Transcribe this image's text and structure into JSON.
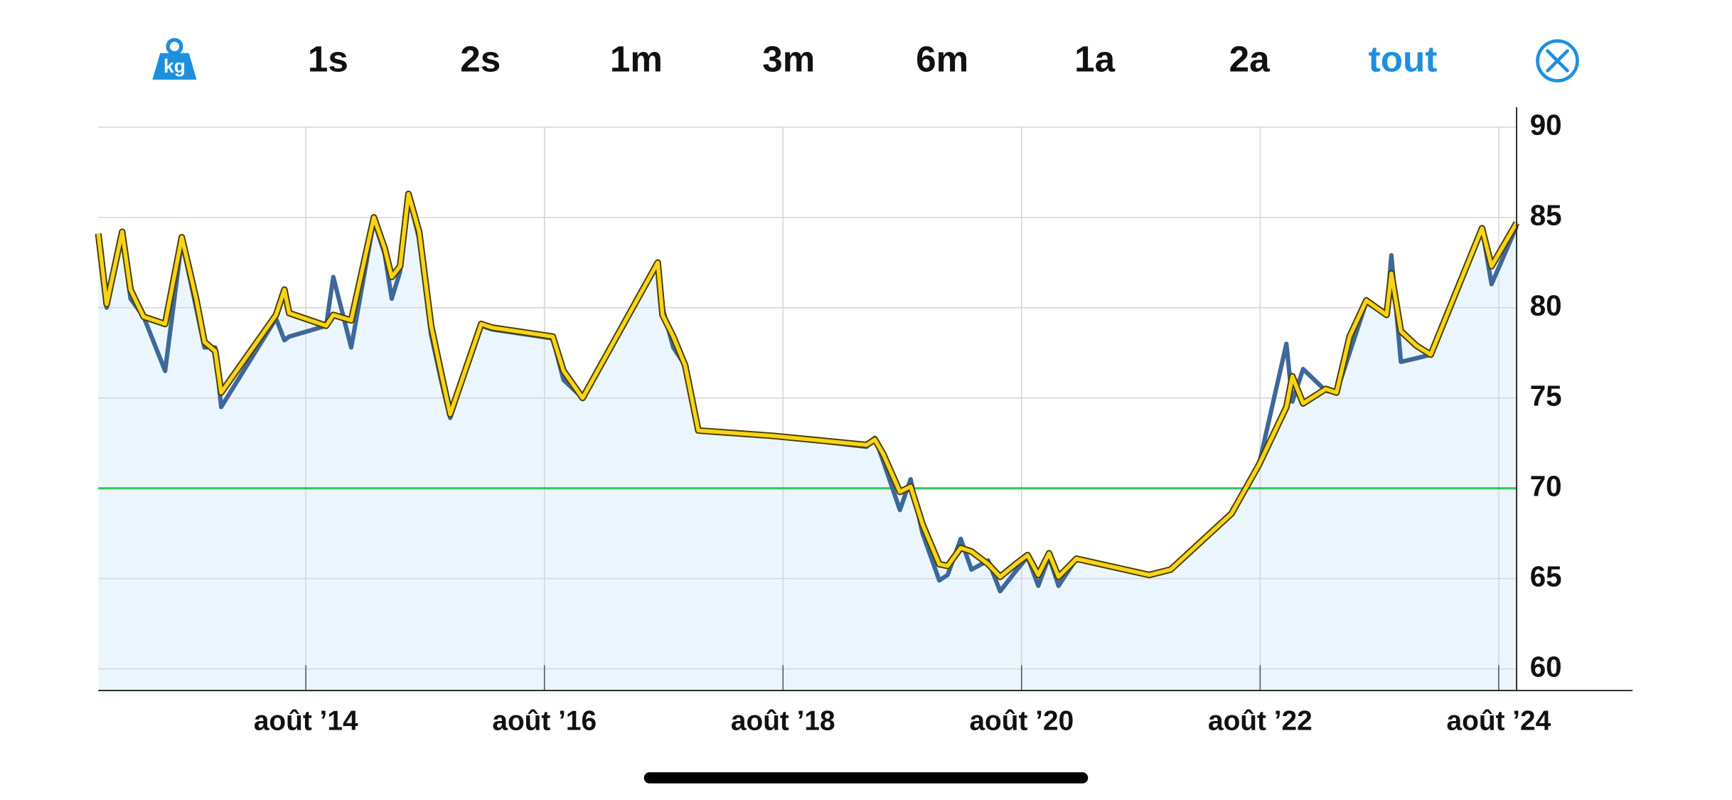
{
  "toolbar": {
    "unit_icon": "kg",
    "ranges": [
      "1s",
      "2s",
      "1m",
      "3m",
      "6m",
      "1a",
      "2a",
      "tout"
    ],
    "selected": 7
  },
  "chart_data": {
    "type": "line",
    "x": [
      2012.84,
      2012.91,
      2013.04,
      2013.11,
      2013.22,
      2013.4,
      2013.54,
      2013.66,
      2013.73,
      2013.82,
      2013.87,
      2014.33,
      2014.4,
      2014.44,
      2014.75,
      2014.81,
      2014.96,
      2015.15,
      2015.24,
      2015.3,
      2015.37,
      2015.44,
      2015.53,
      2015.63,
      2015.72,
      2015.79,
      2016.05,
      2016.14,
      2016.65,
      2016.74,
      2016.9,
      2017.53,
      2017.57,
      2017.66,
      2017.76,
      2017.87,
      2018.5,
      2019.28,
      2019.35,
      2019.42,
      2019.56,
      2019.65,
      2019.75,
      2019.89,
      2019.96,
      2020.07,
      2020.16,
      2020.3,
      2020.4,
      2020.53,
      2020.63,
      2020.72,
      2020.81,
      2020.89,
      2021.04,
      2021.65,
      2021.83,
      2022.34,
      2022.57,
      2022.8,
      2022.85,
      2022.94,
      2023.13,
      2023.22,
      2023.33,
      2023.47,
      2023.64,
      2023.68,
      2023.76,
      2023.89,
      2024.01,
      2024.44,
      2024.52,
      2024.73
    ],
    "series": [
      {
        "color": "#3d6899",
        "values": [
          83.8,
          80.0,
          84.0,
          80.5,
          79.5,
          76.5,
          83.7,
          80.0,
          77.8,
          77.8,
          74.5,
          79.4,
          78.2,
          78.4,
          79.0,
          81.7,
          77.8,
          84.8,
          83.0,
          80.5,
          82.0,
          86.2,
          83.8,
          78.5,
          75.8,
          73.9,
          79.0,
          78.8,
          78.3,
          76.0,
          75.0,
          82.4,
          80.0,
          77.8,
          76.8,
          73.2,
          72.9,
          72.3,
          72.8,
          71.5,
          68.8,
          70.5,
          67.5,
          64.9,
          65.2,
          67.2,
          65.5,
          66.0,
          64.3,
          65.4,
          66.2,
          64.6,
          66.2,
          64.6,
          66.1,
          65.2,
          65.5,
          68.6,
          71.3,
          78.0,
          74.8,
          76.6,
          75.4,
          75.3,
          77.5,
          80.3,
          79.6,
          82.9,
          77.0,
          77.2,
          77.4,
          84.4,
          81.3,
          84.5
        ]
      },
      {
        "color": "#f7d417",
        "values": [
          84.1,
          80.2,
          84.2,
          81.0,
          79.5,
          79.1,
          83.9,
          80.5,
          78.1,
          77.6,
          75.3,
          79.6,
          81.0,
          79.7,
          79.0,
          79.6,
          79.3,
          85.0,
          83.3,
          81.7,
          82.3,
          86.3,
          84.2,
          79.0,
          76.2,
          74.1,
          79.1,
          78.9,
          78.4,
          76.5,
          75.0,
          82.5,
          79.6,
          78.4,
          76.8,
          73.2,
          72.9,
          72.4,
          72.7,
          71.9,
          69.8,
          70.1,
          68.0,
          65.8,
          65.7,
          66.7,
          66.5,
          65.8,
          65.1,
          65.8,
          66.3,
          65.2,
          66.4,
          65.1,
          66.1,
          65.2,
          65.5,
          68.6,
          71.3,
          74.5,
          76.2,
          74.7,
          75.5,
          75.3,
          78.4,
          80.4,
          79.6,
          81.9,
          78.7,
          77.9,
          77.4,
          84.4,
          82.3,
          84.7
        ]
      }
    ],
    "area_color": "#ebf5fd",
    "goal": {
      "value": 70,
      "color": "#34c759"
    },
    "xlim": [
      2012.84,
      2024.73
    ],
    "xticks": [
      {
        "value": 2014.58,
        "label": "août ’14"
      },
      {
        "value": 2016.58,
        "label": "août ’16"
      },
      {
        "value": 2018.58,
        "label": "août ’18"
      },
      {
        "value": 2020.58,
        "label": "août ’20"
      },
      {
        "value": 2022.58,
        "label": "août ’22"
      },
      {
        "value": 2024.58,
        "label": "août ’24"
      }
    ],
    "ylim": [
      58.8,
      91.1
    ],
    "yticks": [
      60,
      65,
      70,
      75,
      80,
      85,
      90
    ],
    "grid": true
  }
}
